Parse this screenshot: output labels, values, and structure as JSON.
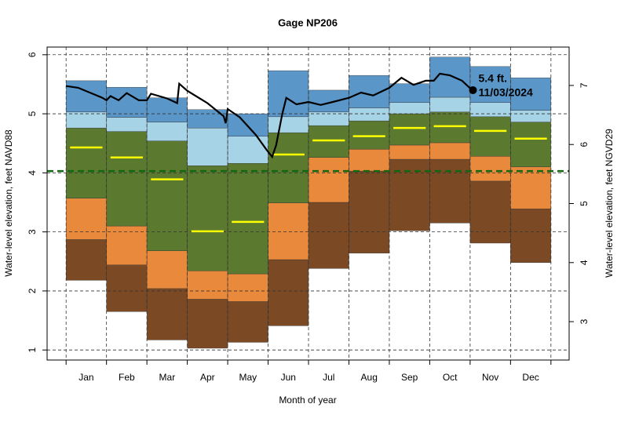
{
  "chart_data": {
    "type": "percentile-bands",
    "title": "Gage NP206",
    "x_label": "Month of year",
    "y_label": "Water-level elevation, feet NAVD88",
    "y2_label": "Water-level elevation, feet NGVD29",
    "categories": [
      "Jan",
      "Feb",
      "Mar",
      "Apr",
      "May",
      "Jun",
      "Jul",
      "Aug",
      "Sep",
      "Oct",
      "Nov",
      "Dec"
    ],
    "xlim": [
      -0.47,
      12.45
    ],
    "ylim": [
      0.83,
      6.13
    ],
    "yticks": [
      1,
      2,
      3,
      4,
      5,
      6
    ],
    "y2lim": [
      2.35,
      7.65
    ],
    "y2ticks": [
      3,
      4,
      5,
      6,
      7
    ],
    "grid": true,
    "levels": [
      {
        "values": [
          2.18,
          1.65,
          1.17,
          1.03,
          1.13,
          1.41,
          2.38,
          2.64,
          3.02,
          3.15,
          2.81,
          2.48
        ]
      },
      {
        "values": [
          2.87,
          2.44,
          2.04,
          1.86,
          1.82,
          2.53,
          3.5,
          4.03,
          4.23,
          4.23,
          3.86,
          3.39
        ]
      },
      {
        "values": [
          3.57,
          3.1,
          2.68,
          2.34,
          2.29,
          3.49,
          4.26,
          4.4,
          4.47,
          4.51,
          4.28,
          4.1
        ]
      },
      {
        "values": [
          4.76,
          4.7,
          4.54,
          4.12,
          4.16,
          4.68,
          4.8,
          4.88,
          5.0,
          5.03,
          4.95,
          4.86
        ]
      },
      {
        "values": [
          5.03,
          4.94,
          4.86,
          4.76,
          4.62,
          4.95,
          5.03,
          5.1,
          5.19,
          5.28,
          5.19,
          5.06
        ]
      },
      {
        "values": [
          5.56,
          5.45,
          5.27,
          5.07,
          5.0,
          5.73,
          5.4,
          5.65,
          5.51,
          5.96,
          5.8,
          5.61
        ]
      }
    ],
    "band_colors": [
      "#7b4a24",
      "#e8893b",
      "#5b7a30",
      "#a6d3e5",
      "#5a96c8"
    ],
    "median": {
      "color": "#ffff00",
      "values": [
        4.43,
        4.26,
        3.89,
        3.01,
        3.17,
        4.31,
        4.55,
        4.62,
        4.76,
        4.79,
        4.71,
        4.58
      ]
    },
    "reference_line": {
      "value": 4.03,
      "color": "#116611"
    },
    "series": [
      {
        "color": "#000000",
        "x": [
          0.0,
          0.3,
          0.9,
          1.0,
          1.1,
          1.3,
          1.5,
          1.8,
          2.0,
          2.1,
          2.5,
          2.75,
          2.8,
          3.0,
          3.5,
          3.9,
          3.95,
          4.0,
          4.3,
          4.7,
          4.95,
          5.1,
          5.2,
          5.35,
          5.45,
          5.7,
          6.0,
          6.3,
          6.6,
          7.0,
          7.3,
          7.6,
          8.0,
          8.3,
          8.6,
          8.9,
          9.1,
          9.25,
          9.5,
          9.8,
          10.05
        ],
        "values": [
          5.47,
          5.44,
          5.27,
          5.23,
          5.3,
          5.23,
          5.35,
          5.23,
          5.23,
          5.34,
          5.26,
          5.18,
          5.51,
          5.39,
          5.18,
          4.96,
          4.84,
          5.08,
          4.94,
          4.64,
          4.4,
          4.27,
          4.47,
          5.0,
          5.27,
          5.16,
          5.2,
          5.15,
          5.2,
          5.27,
          5.36,
          5.31,
          5.44,
          5.61,
          5.49,
          5.56,
          5.56,
          5.68,
          5.65,
          5.56,
          5.4
        ]
      }
    ],
    "marker": {
      "x": 10.07,
      "value": 5.4,
      "label": "5.4 ft.",
      "date": "11/03/2024"
    }
  }
}
